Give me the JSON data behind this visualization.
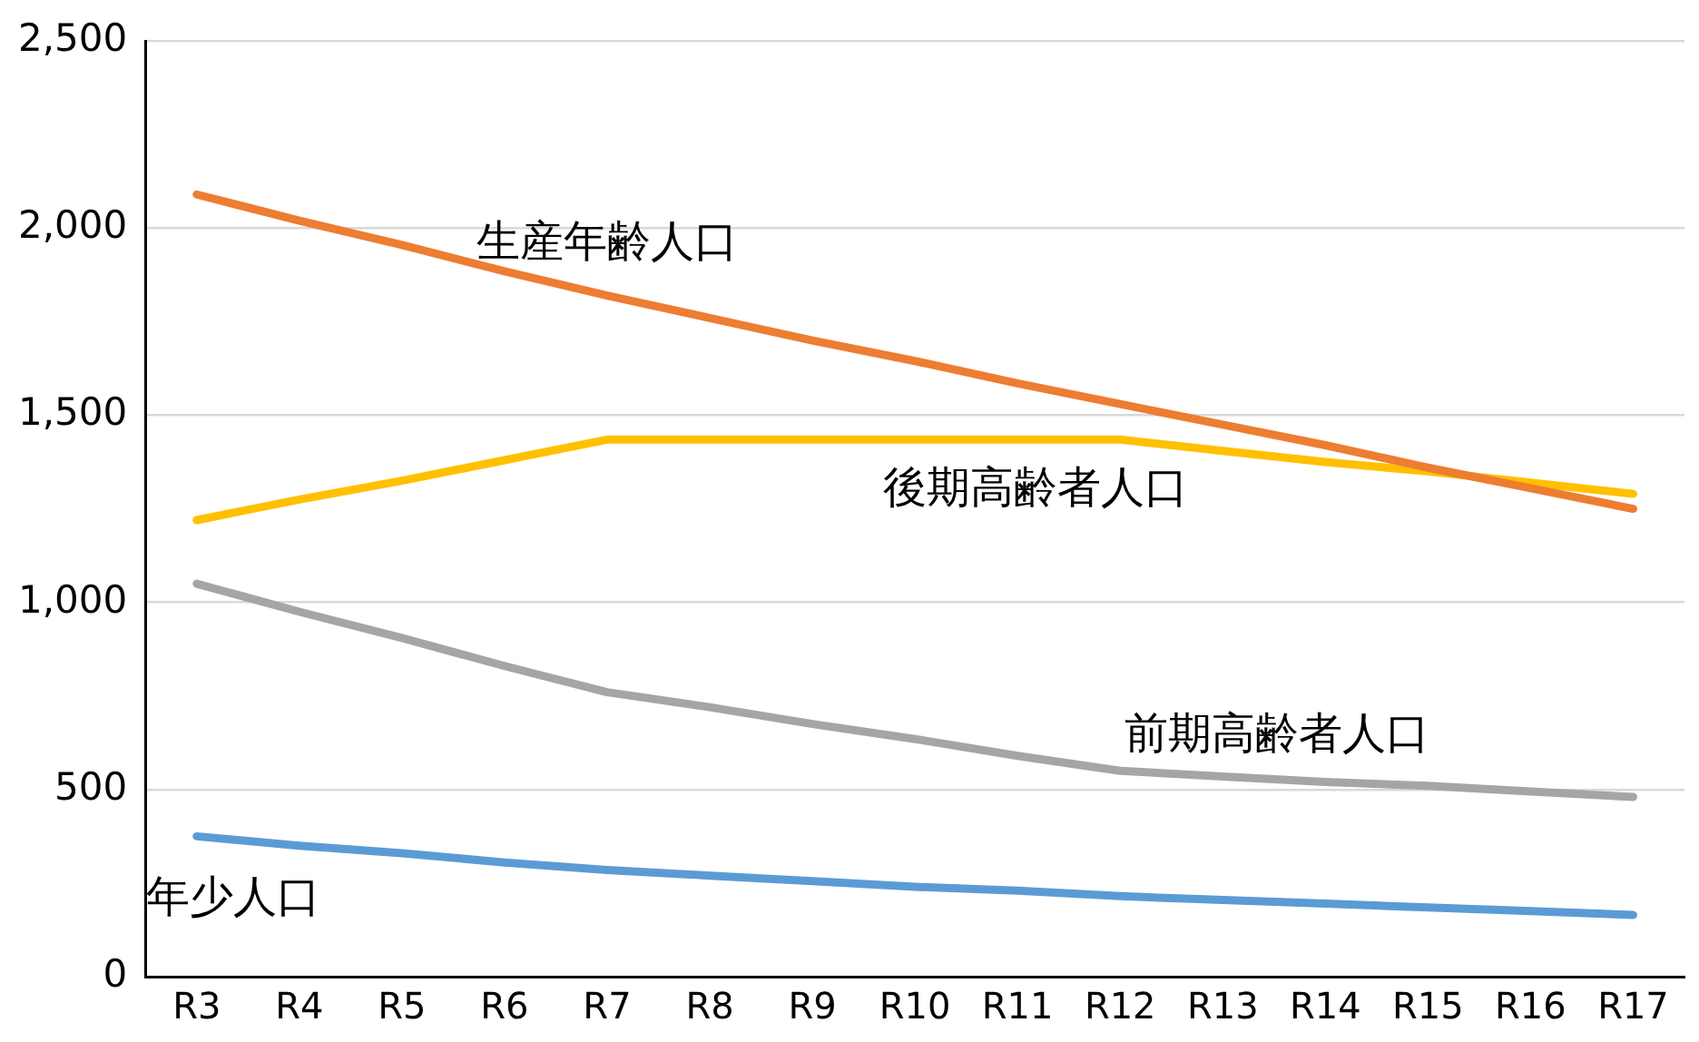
{
  "chart_data": {
    "type": "line",
    "categories": [
      "R3",
      "R4",
      "R5",
      "R6",
      "R7",
      "R8",
      "R9",
      "R10",
      "R11",
      "R12",
      "R13",
      "R14",
      "R15",
      "R16",
      "R17"
    ],
    "series": [
      {
        "name": "生産年齢人口",
        "color": "#ed7d31",
        "values": [
          2090,
          2020,
          1955,
          1885,
          1820,
          1760,
          1700,
          1645,
          1585,
          1530,
          1475,
          1420,
          1360,
          1305,
          1250
        ]
      },
      {
        "name": "後期高齢者人口",
        "color": "#ffc000",
        "values": [
          1220,
          1275,
          1325,
          1380,
          1435,
          1435,
          1435,
          1435,
          1435,
          1435,
          1405,
          1375,
          1350,
          1320,
          1290
        ]
      },
      {
        "name": "前期高齢者人口",
        "color": "#a5a5a5",
        "values": [
          1050,
          975,
          905,
          830,
          760,
          720,
          675,
          635,
          590,
          550,
          535,
          520,
          510,
          495,
          480
        ]
      },
      {
        "name": "年少人口",
        "color": "#5b9bd5",
        "values": [
          375,
          350,
          330,
          305,
          285,
          270,
          255,
          240,
          230,
          215,
          205,
          195,
          185,
          175,
          165
        ]
      }
    ],
    "ylim": [
      0,
      2500
    ],
    "yticks": [
      {
        "value": 0,
        "label": "0"
      },
      {
        "value": 500,
        "label": "500"
      },
      {
        "value": 1000,
        "label": "1,000"
      },
      {
        "value": 1500,
        "label": "1,500"
      },
      {
        "value": 2000,
        "label": "2,000"
      },
      {
        "value": 2500,
        "label": "2,500"
      }
    ],
    "grid": "y",
    "legend": false,
    "marker": "none",
    "line_style": "solid"
  }
}
